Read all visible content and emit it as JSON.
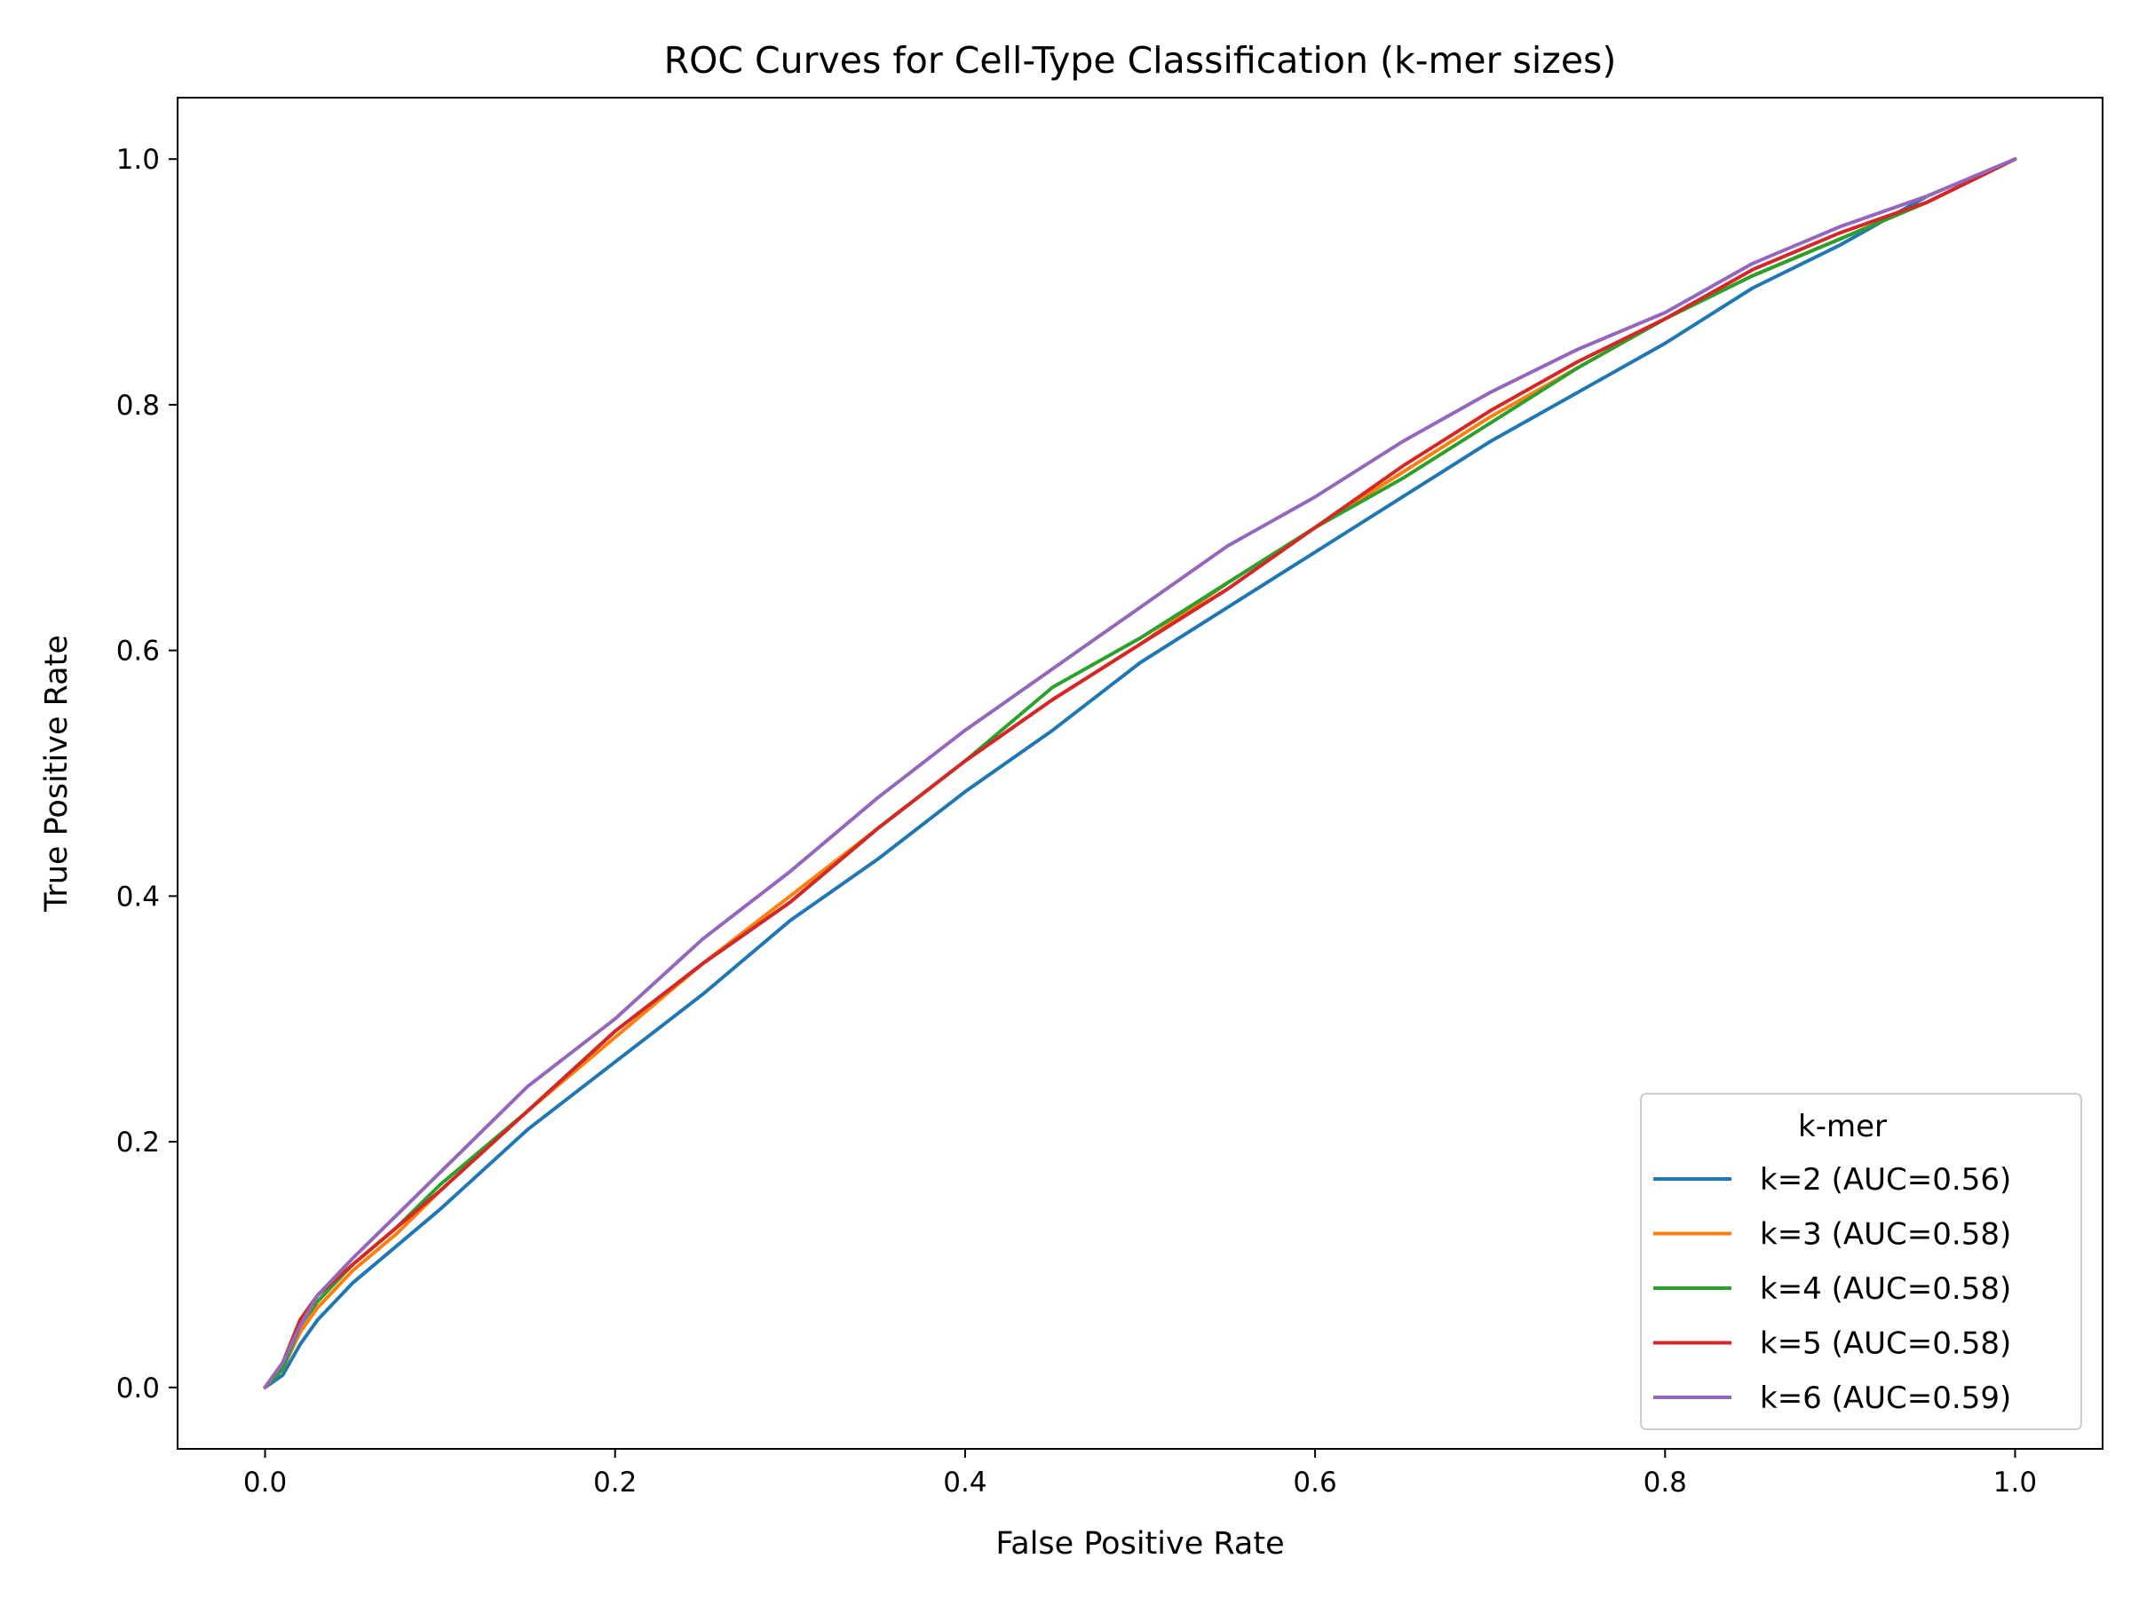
{
  "chart_data": {
    "type": "line",
    "title": "ROC Curves for Cell-Type Classification (k-mer sizes)",
    "xlabel": "False Positive Rate",
    "ylabel": "True Positive Rate",
    "xlim": [
      -0.05,
      1.05
    ],
    "ylim": [
      -0.05,
      1.05
    ],
    "xticks": [
      "0.0",
      "0.2",
      "0.4",
      "0.6",
      "0.8",
      "1.0"
    ],
    "yticks": [
      "0.0",
      "0.2",
      "0.4",
      "0.6",
      "0.8",
      "1.0"
    ],
    "grid": false,
    "legend": {
      "title": "k-mer",
      "placement": "lower-right"
    },
    "series": [
      {
        "name": "k=2 (AUC=0.56)",
        "color": "#1f77b4",
        "x": [
          0,
          0.01,
          0.02,
          0.03,
          0.05,
          0.075,
          0.1,
          0.15,
          0.2,
          0.25,
          0.3,
          0.35,
          0.4,
          0.45,
          0.5,
          0.55,
          0.6,
          0.65,
          0.7,
          0.75,
          0.8,
          0.85,
          0.9,
          0.95,
          1.0
        ],
        "y": [
          0,
          0.01,
          0.035,
          0.055,
          0.085,
          0.115,
          0.145,
          0.21,
          0.265,
          0.32,
          0.38,
          0.43,
          0.485,
          0.535,
          0.59,
          0.635,
          0.68,
          0.725,
          0.77,
          0.81,
          0.85,
          0.895,
          0.93,
          0.97,
          1.0
        ]
      },
      {
        "name": "k=3 (AUC=0.58)",
        "color": "#ff7f0e",
        "x": [
          0,
          0.01,
          0.02,
          0.03,
          0.05,
          0.075,
          0.1,
          0.15,
          0.2,
          0.25,
          0.3,
          0.35,
          0.4,
          0.45,
          0.5,
          0.55,
          0.6,
          0.65,
          0.7,
          0.75,
          0.8,
          0.85,
          0.9,
          0.95,
          1.0
        ],
        "y": [
          0,
          0.015,
          0.045,
          0.065,
          0.095,
          0.125,
          0.16,
          0.225,
          0.285,
          0.345,
          0.4,
          0.455,
          0.51,
          0.56,
          0.605,
          0.655,
          0.7,
          0.745,
          0.79,
          0.83,
          0.87,
          0.905,
          0.935,
          0.965,
          1.0
        ]
      },
      {
        "name": "k=4 (AUC=0.58)",
        "color": "#2ca02c",
        "x": [
          0,
          0.01,
          0.02,
          0.03,
          0.05,
          0.075,
          0.1,
          0.15,
          0.2,
          0.25,
          0.3,
          0.35,
          0.4,
          0.45,
          0.5,
          0.55,
          0.6,
          0.65,
          0.7,
          0.75,
          0.8,
          0.85,
          0.9,
          0.95,
          1.0
        ],
        "y": [
          0,
          0.015,
          0.05,
          0.07,
          0.1,
          0.13,
          0.165,
          0.225,
          0.29,
          0.345,
          0.395,
          0.455,
          0.51,
          0.57,
          0.61,
          0.655,
          0.7,
          0.74,
          0.785,
          0.83,
          0.87,
          0.905,
          0.935,
          0.965,
          1.0
        ]
      },
      {
        "name": "k=5 (AUC=0.58)",
        "color": "#d62728",
        "x": [
          0,
          0.01,
          0.02,
          0.03,
          0.05,
          0.075,
          0.1,
          0.15,
          0.2,
          0.25,
          0.3,
          0.35,
          0.4,
          0.45,
          0.5,
          0.55,
          0.6,
          0.65,
          0.7,
          0.75,
          0.8,
          0.85,
          0.9,
          0.95,
          1.0
        ],
        "y": [
          0,
          0.02,
          0.055,
          0.075,
          0.1,
          0.13,
          0.16,
          0.225,
          0.29,
          0.345,
          0.395,
          0.455,
          0.51,
          0.56,
          0.605,
          0.65,
          0.7,
          0.75,
          0.795,
          0.835,
          0.87,
          0.91,
          0.94,
          0.965,
          1.0
        ]
      },
      {
        "name": "k=6 (AUC=0.59)",
        "color": "#9467bd",
        "x": [
          0,
          0.01,
          0.02,
          0.03,
          0.05,
          0.075,
          0.1,
          0.15,
          0.2,
          0.25,
          0.3,
          0.35,
          0.4,
          0.45,
          0.5,
          0.55,
          0.6,
          0.65,
          0.7,
          0.75,
          0.8,
          0.85,
          0.9,
          0.95,
          1.0
        ],
        "y": [
          0,
          0.02,
          0.05,
          0.075,
          0.105,
          0.14,
          0.175,
          0.245,
          0.3,
          0.365,
          0.42,
          0.48,
          0.535,
          0.585,
          0.635,
          0.685,
          0.725,
          0.77,
          0.81,
          0.845,
          0.875,
          0.915,
          0.945,
          0.97,
          1.0
        ]
      }
    ]
  }
}
